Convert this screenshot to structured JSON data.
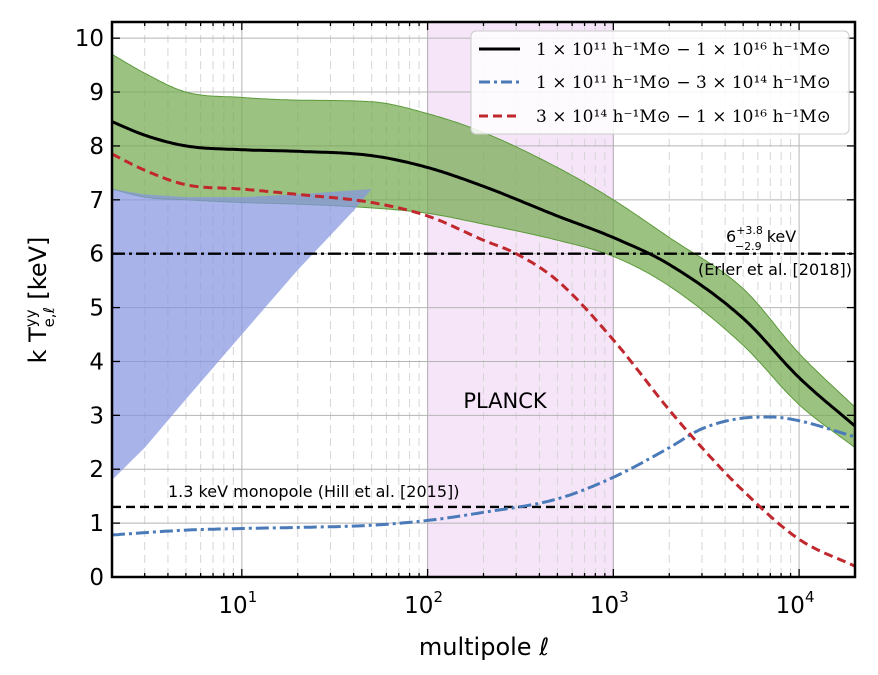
{
  "chart_data": {
    "type": "line",
    "xlabel": "multipole ℓ",
    "ylabel": "k T̄ yy e,ℓ [keV]",
    "ylabel_parts": {
      "prefix": "k T",
      "sup": "yy",
      "sub": "e,ℓ",
      "suffix": " [keV]"
    },
    "xscale": "log",
    "xlim": [
      2,
      20000
    ],
    "ylim": [
      0,
      10.3
    ],
    "grid": true,
    "legend_position": "top-right",
    "x_ticks": [
      {
        "value": 10,
        "base": "10",
        "exp": "1"
      },
      {
        "value": 100,
        "base": "10",
        "exp": "2"
      },
      {
        "value": 1000,
        "base": "10",
        "exp": "3"
      },
      {
        "value": 10000,
        "base": "10",
        "exp": "4"
      }
    ],
    "y_ticks": [
      0,
      1,
      2,
      3,
      4,
      5,
      6,
      7,
      8,
      9,
      10
    ],
    "legend": [
      {
        "label": "1 × 10¹¹ h⁻¹M⊙ − 1 × 10¹⁶ h⁻¹M⊙",
        "color": "#000000",
        "style": "solid"
      },
      {
        "label": "1 × 10¹¹ h⁻¹M⊙ − 3 × 10¹⁴ h⁻¹M⊙",
        "color": "#4a7ab8",
        "style": "dashdot"
      },
      {
        "label": "3 × 10¹⁴ h⁻¹M⊙ − 1 × 10¹⁶ h⁻¹M⊙",
        "color": "#c0282d",
        "style": "dashed"
      }
    ],
    "series": [
      {
        "color": "#000000",
        "x": [
          2,
          3,
          5,
          10,
          20,
          50,
          100,
          200,
          500,
          1000,
          2000,
          5000,
          10000,
          20000
        ],
        "y": [
          8.45,
          8.2,
          8.0,
          7.93,
          7.9,
          7.82,
          7.6,
          7.25,
          6.7,
          6.3,
          5.8,
          4.8,
          3.7,
          2.8
        ]
      },
      {
        "color": "#4a7ab8",
        "x": [
          2,
          5,
          10,
          20,
          50,
          100,
          200,
          500,
          1000,
          2000,
          3000,
          5000,
          7000,
          10000,
          20000
        ],
        "y": [
          0.78,
          0.87,
          0.9,
          0.92,
          0.96,
          1.05,
          1.2,
          1.45,
          1.85,
          2.4,
          2.75,
          2.95,
          2.97,
          2.9,
          2.6
        ]
      },
      {
        "color": "#c0282d",
        "x": [
          2,
          3,
          5,
          10,
          20,
          50,
          100,
          200,
          300,
          500,
          1000,
          2000,
          3000,
          5000,
          10000,
          20000
        ],
        "y": [
          7.85,
          7.55,
          7.28,
          7.2,
          7.1,
          6.95,
          6.7,
          6.25,
          6.0,
          5.5,
          4.4,
          3.1,
          2.4,
          1.6,
          0.7,
          0.2
        ]
      }
    ],
    "bands": [
      {
        "color": "#74aa50",
        "x": [
          2,
          3,
          5,
          10,
          20,
          50,
          100,
          200,
          500,
          1000,
          2000,
          5000,
          10000,
          20000
        ],
        "lower": [
          7.2,
          7.05,
          7.0,
          6.95,
          6.92,
          6.85,
          6.75,
          6.55,
          6.25,
          5.95,
          5.4,
          4.3,
          3.2,
          2.4
        ],
        "upper": [
          9.7,
          9.35,
          9.0,
          8.9,
          8.85,
          8.82,
          8.6,
          8.25,
          7.6,
          7.0,
          6.3,
          5.35,
          4.15,
          3.15
        ]
      },
      {
        "color": "#8595e1",
        "x": [
          2,
          3,
          5,
          10,
          20,
          40,
          50,
          20,
          10,
          5,
          3,
          2
        ],
        "y": [
          1.8,
          2.4,
          3.3,
          4.5,
          5.7,
          6.8,
          7.2,
          7.1,
          7.05,
          7.05,
          7.1,
          7.2
        ]
      }
    ],
    "reference_lines": [
      {
        "y": 6.0,
        "style": "dashdot",
        "color": "#000000"
      },
      {
        "y": 1.3,
        "style": "dashed",
        "color": "#000000"
      }
    ],
    "shaded_region": {
      "x": [
        100,
        1000
      ],
      "label": "PLANCK",
      "color": "#cc66dd"
    },
    "annotations": {
      "erler_value": {
        "main": "6",
        "sup": "+3.8",
        "sub": "−2.9",
        "unit": " keV"
      },
      "erler_ref": "(Erler et al. [2018])",
      "hill": "1.3 keV monopole (Hill et al. [2015])"
    }
  }
}
